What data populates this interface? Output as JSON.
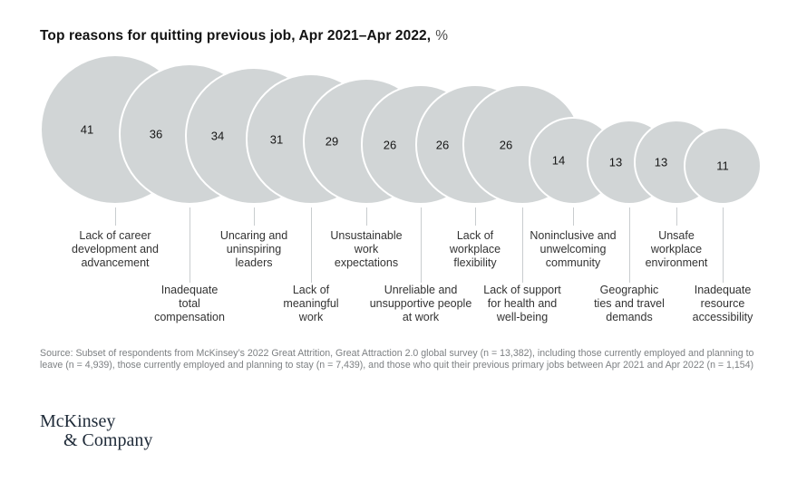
{
  "header": {
    "title": "Top reasons for quitting previous job, Apr 2021–Apr 2022,",
    "title_unit": "%"
  },
  "chart_data": {
    "type": "bubble",
    "title": "Top reasons for quitting previous job, Apr 2021–Apr 2022, %",
    "unit": "%",
    "bubble_color": "#d1d5d6",
    "categories": [
      "Lack of career development and advancement",
      "Inadequate total compensation",
      "Uncaring and uninspiring leaders",
      "Lack of meaningful work",
      "Unsustainable work expectations",
      "Unreliable and unsupportive people at work",
      "Lack of workplace flexibility",
      "Lack of support for health and well-being",
      "Noninclusive and unwelcoming community",
      "Geographic ties and travel demands",
      "Unsafe workplace environment",
      "Inadequate resource accessibility"
    ],
    "values": [
      41,
      36,
      34,
      31,
      29,
      26,
      26,
      26,
      14,
      13,
      13,
      11
    ],
    "label_lines": [
      [
        "Lack of career",
        "development and",
        "advancement"
      ],
      [
        "Inadequate",
        "total",
        "compensation"
      ],
      [
        "Uncaring and",
        "uninspiring",
        "leaders"
      ],
      [
        "Lack of",
        "meaningful",
        "work"
      ],
      [
        "Unsustainable",
        "work",
        "expectations"
      ],
      [
        "Unreliable and",
        "unsupportive people",
        "at work"
      ],
      [
        "Lack of",
        "workplace",
        "flexibility"
      ],
      [
        "Lack of support",
        "for health and",
        "well-being"
      ],
      [
        "Noninclusive and",
        "unwelcoming",
        "community"
      ],
      [
        "Geographic",
        "ties and travel",
        "demands"
      ],
      [
        "Unsafe",
        "workplace",
        "environment"
      ],
      [
        "Inadequate",
        "resource",
        "accessibility"
      ]
    ],
    "layout_hints": {
      "sizing": "circle area proportional to value",
      "alignment": "bottom-aligned overlapping row, later circles on top with white stroke",
      "labels": "alternating upper/lower rows connected by vertical ticks"
    }
  },
  "source": {
    "text": "Source: Subset of respondents from McKinsey’s 2022 Great Attrition, Great Attraction 2.0 global survey (n = 13,382), including those currently employed and planning to leave (n = 4,939), those currently employed and planning to stay (n = 7,439), and those who quit their previous primary jobs between Apr 2021 and Apr 2022 (n = 1,154)"
  },
  "logo": {
    "line1": "McKinsey",
    "line2": "& Company"
  }
}
